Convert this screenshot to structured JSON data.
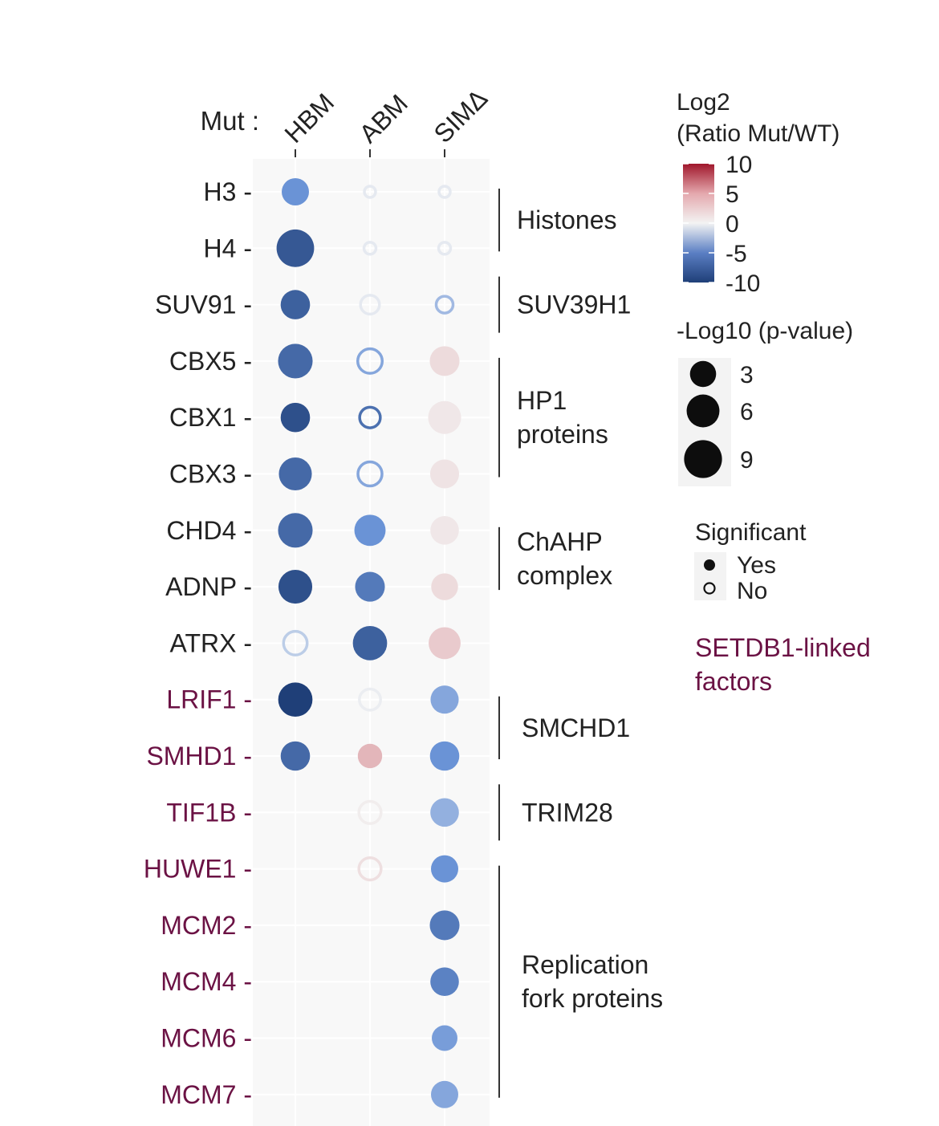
{
  "chart_data": {
    "type": "scatter",
    "subtype": "dot-plot",
    "xprefix": "Mut :",
    "columns": [
      "HBM",
      "ABM",
      "SIMΔ"
    ],
    "rows": [
      {
        "name": "H3",
        "setdb1_linked": false
      },
      {
        "name": "H4",
        "setdb1_linked": false
      },
      {
        "name": "SUV91",
        "setdb1_linked": false
      },
      {
        "name": "CBX5",
        "setdb1_linked": false
      },
      {
        "name": "CBX1",
        "setdb1_linked": false
      },
      {
        "name": "CBX3",
        "setdb1_linked": false
      },
      {
        "name": "CHD4",
        "setdb1_linked": false
      },
      {
        "name": "ADNP",
        "setdb1_linked": false
      },
      {
        "name": "ATRX",
        "setdb1_linked": false
      },
      {
        "name": "LRIF1",
        "setdb1_linked": true
      },
      {
        "name": "SMHD1",
        "setdb1_linked": true
      },
      {
        "name": "TIF1B",
        "setdb1_linked": true
      },
      {
        "name": "HUWE1",
        "setdb1_linked": true
      },
      {
        "name": "MCM2",
        "setdb1_linked": true
      },
      {
        "name": "MCM4",
        "setdb1_linked": true
      },
      {
        "name": "MCM6",
        "setdb1_linked": true
      },
      {
        "name": "MCM7",
        "setdb1_linked": true
      }
    ],
    "points": [
      {
        "row": "H3",
        "col": "HBM",
        "log2ratio": -5,
        "neglog10p": 4,
        "significant": true
      },
      {
        "row": "H3",
        "col": "ABM",
        "log2ratio": -0.5,
        "neglog10p": 0.3,
        "significant": false
      },
      {
        "row": "H3",
        "col": "SIMΔ",
        "log2ratio": -0.5,
        "neglog10p": 0.3,
        "significant": false
      },
      {
        "row": "H4",
        "col": "HBM",
        "log2ratio": -8.5,
        "neglog10p": 10,
        "significant": true
      },
      {
        "row": "H4",
        "col": "ABM",
        "log2ratio": -0.5,
        "neglog10p": 0.4,
        "significant": false
      },
      {
        "row": "H4",
        "col": "SIMΔ",
        "log2ratio": -0.5,
        "neglog10p": 0.4,
        "significant": false
      },
      {
        "row": "SUV91",
        "col": "HBM",
        "log2ratio": -8,
        "neglog10p": 5,
        "significant": true
      },
      {
        "row": "SUV91",
        "col": "ABM",
        "log2ratio": -0.5,
        "neglog10p": 2,
        "significant": false
      },
      {
        "row": "SUV91",
        "col": "SIMΔ",
        "log2ratio": -3,
        "neglog10p": 1.4,
        "significant": false
      },
      {
        "row": "CBX5",
        "col": "HBM",
        "log2ratio": -7.5,
        "neglog10p": 8,
        "significant": true
      },
      {
        "row": "CBX5",
        "col": "ABM",
        "log2ratio": -4,
        "neglog10p": 4.2,
        "significant": false
      },
      {
        "row": "CBX5",
        "col": "SIMΔ",
        "log2ratio": 1.2,
        "neglog10p": 5.2,
        "significant": true
      },
      {
        "row": "CBX1",
        "col": "HBM",
        "log2ratio": -9,
        "neglog10p": 5,
        "significant": true
      },
      {
        "row": "CBX1",
        "col": "ABM",
        "log2ratio": -7,
        "neglog10p": 2.6,
        "significant": false
      },
      {
        "row": "CBX1",
        "col": "SIMΔ",
        "log2ratio": 0.6,
        "neglog10p": 7,
        "significant": true
      },
      {
        "row": "CBX3",
        "col": "HBM",
        "log2ratio": -7.5,
        "neglog10p": 7,
        "significant": true
      },
      {
        "row": "CBX3",
        "col": "ABM",
        "log2ratio": -4,
        "neglog10p": 4,
        "significant": false
      },
      {
        "row": "CBX3",
        "col": "SIMΔ",
        "log2ratio": 0.8,
        "neglog10p": 4.8,
        "significant": true
      },
      {
        "row": "CHD4",
        "col": "HBM",
        "log2ratio": -7.5,
        "neglog10p": 8,
        "significant": true
      },
      {
        "row": "CHD4",
        "col": "ABM",
        "log2ratio": -5,
        "neglog10p": 6,
        "significant": true
      },
      {
        "row": "CHD4",
        "col": "SIMΔ",
        "log2ratio": 0.6,
        "neglog10p": 4.6,
        "significant": true
      },
      {
        "row": "ADNP",
        "col": "HBM",
        "log2ratio": -9,
        "neglog10p": 7.5,
        "significant": true
      },
      {
        "row": "ADNP",
        "col": "ABM",
        "log2ratio": -6.5,
        "neglog10p": 5.2,
        "significant": true
      },
      {
        "row": "ADNP",
        "col": "SIMΔ",
        "log2ratio": 1.2,
        "neglog10p": 3.8,
        "significant": true
      },
      {
        "row": "ATRX",
        "col": "HBM",
        "log2ratio": -2,
        "neglog10p": 3.8,
        "significant": false
      },
      {
        "row": "ATRX",
        "col": "ABM",
        "log2ratio": -8,
        "neglog10p": 7.8,
        "significant": true
      },
      {
        "row": "ATRX",
        "col": "SIMΔ",
        "log2ratio": 2,
        "neglog10p": 6.4,
        "significant": true
      },
      {
        "row": "LRIF1",
        "col": "HBM",
        "log2ratio": -10,
        "neglog10p": 7.8,
        "significant": true
      },
      {
        "row": "LRIF1",
        "col": "ABM",
        "log2ratio": -0.3,
        "neglog10p": 2.8,
        "significant": false
      },
      {
        "row": "LRIF1",
        "col": "SIMΔ",
        "log2ratio": -4,
        "neglog10p": 4.4,
        "significant": true
      },
      {
        "row": "SMHD1",
        "col": "HBM",
        "log2ratio": -7.5,
        "neglog10p": 5,
        "significant": true
      },
      {
        "row": "SMHD1",
        "col": "ABM",
        "log2ratio": 3,
        "neglog10p": 2.8,
        "significant": true
      },
      {
        "row": "SMHD1",
        "col": "SIMΔ",
        "log2ratio": -5,
        "neglog10p": 5,
        "significant": true
      },
      {
        "row": "TIF1B",
        "col": "ABM",
        "log2ratio": 0.3,
        "neglog10p": 3.2,
        "significant": false
      },
      {
        "row": "TIF1B",
        "col": "SIMΔ",
        "log2ratio": -3.5,
        "neglog10p": 4.6,
        "significant": true
      },
      {
        "row": "HUWE1",
        "col": "ABM",
        "log2ratio": 1,
        "neglog10p": 3.2,
        "significant": false
      },
      {
        "row": "HUWE1",
        "col": "SIMΔ",
        "log2ratio": -5,
        "neglog10p": 4,
        "significant": true
      },
      {
        "row": "MCM2",
        "col": "SIMΔ",
        "log2ratio": -6.5,
        "neglog10p": 5.2,
        "significant": true
      },
      {
        "row": "MCM4",
        "col": "SIMΔ",
        "log2ratio": -6,
        "neglog10p": 4.6,
        "significant": true
      },
      {
        "row": "MCM6",
        "col": "SIMΔ",
        "log2ratio": -4.5,
        "neglog10p": 3.3,
        "significant": true
      },
      {
        "row": "MCM7",
        "col": "SIMΔ",
        "log2ratio": -4,
        "neglog10p": 4,
        "significant": true
      }
    ],
    "groups": [
      {
        "label": [
          "Histones"
        ],
        "rows": [
          "H3",
          "H4"
        ]
      },
      {
        "label": [
          "SUV39H1"
        ],
        "rows": [
          "SUV91"
        ]
      },
      {
        "label": [
          "HP1",
          "proteins"
        ],
        "rows": [
          "CBX5",
          "CBX1",
          "CBX3"
        ]
      },
      {
        "label": [
          "ChAHP",
          "complex"
        ],
        "rows": [
          "CHD4",
          "ADNP"
        ]
      },
      {
        "label": [
          "SMCHD1"
        ],
        "rows": [
          "LRIF1",
          "SMHD1"
        ]
      },
      {
        "label": [
          "TRIM28"
        ],
        "rows": [
          "TIF1B"
        ]
      },
      {
        "label": [
          "Replication",
          "fork proteins"
        ],
        "rows": [
          "HUWE1",
          "MCM2",
          "MCM4",
          "MCM6",
          "MCM7"
        ]
      }
    ],
    "color_legend": {
      "title_lines": [
        "Log2",
        "(Ratio Mut/WT)"
      ],
      "ticks": [
        "10",
        "5",
        "0",
        "-5",
        "-10"
      ],
      "range": [
        -10,
        10
      ]
    },
    "size_legend": {
      "title": "-Log10 (p-value)",
      "values": [
        3,
        6,
        9
      ]
    },
    "significance_legend": {
      "title": "Significant",
      "entries": [
        "Yes",
        "No"
      ]
    },
    "setdb1_note_lines": [
      "SETDB1-linked",
      "factors"
    ],
    "colors": {
      "negative_max": "#1f3f78",
      "negative_mid": "#6a93d6",
      "neutral": "#f3f3f3",
      "positive_mid": "#d98d94",
      "positive_max": "#a0162b",
      "setdb1_label": "#6b1244",
      "default_label": "#222222",
      "panel_bg": "#f8f8f8"
    }
  }
}
